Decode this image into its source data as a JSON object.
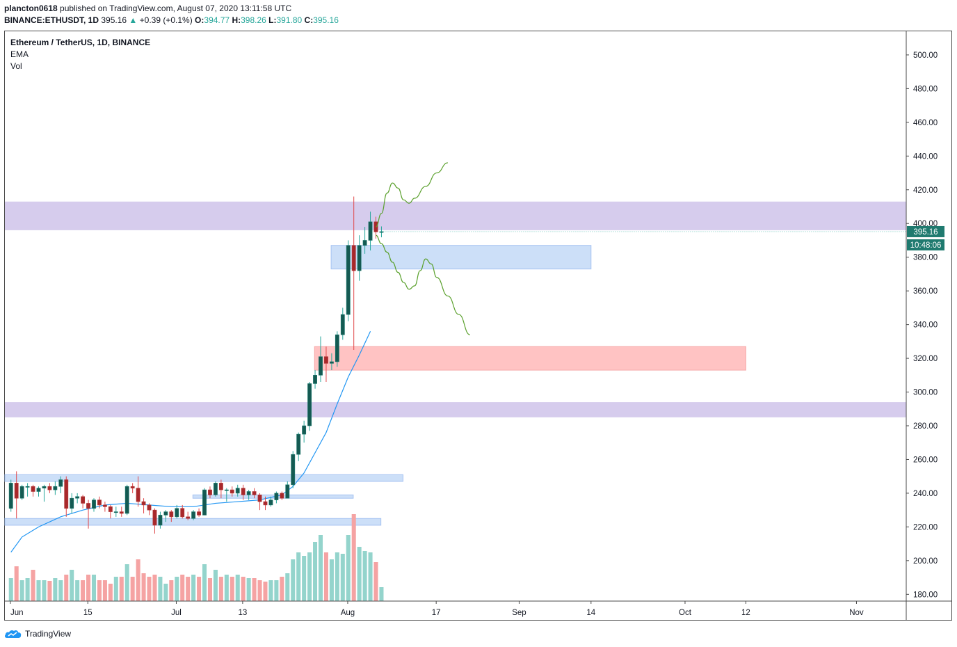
{
  "header": {
    "author": "plancton0618",
    "published_text": " published on TradingView.com, August 07, 2020 13:11:58 UTC",
    "symbol": "BINANCE:ETHUSDT, 1D",
    "last": "395.16",
    "change_arrow": "▲",
    "change": "+0.39 (+0.1%)",
    "o_label": "O:",
    "o_val": "394.77",
    "h_label": "H:",
    "h_val": "398.26",
    "l_label": "L:",
    "l_val": "391.80",
    "c_label": "C:",
    "c_val": "395.16"
  },
  "legend": {
    "title": "Ethereum / TetherUS, 1D, BINANCE",
    "ema": "EMA",
    "vol": "Vol"
  },
  "price_label": "395.16",
  "countdown_label": "10:48:06",
  "footer": {
    "brand": "TradingView"
  },
  "colors": {
    "up": "#26a69a",
    "down": "#ef5350",
    "vol_up": "#94d4cc",
    "vol_down": "#f5a3a3",
    "ema": "#2196f3",
    "projection": "#5aa02c",
    "purple_zone": "#d2c7eb",
    "blue_zone": "#c7dcf8",
    "red_zone": "#ffbdbd"
  },
  "chart_data": {
    "type": "candlestick",
    "title": "Ethereum / TetherUS, 1D, BINANCE",
    "ylim": [
      176,
      514
    ],
    "y_ticks": [
      "500.00",
      "480.00",
      "460.00",
      "440.00",
      "420.00",
      "400.00",
      "380.00",
      "360.00",
      "340.00",
      "320.00",
      "300.00",
      "280.00",
      "260.00",
      "240.00",
      "220.00",
      "200.00",
      "180.00"
    ],
    "x_ticks": [
      "Jun",
      "15",
      "Jul",
      "13",
      "Aug",
      "17",
      "Sep",
      "14",
      "Oct",
      "12",
      "Nov"
    ],
    "x_tick_dates": [
      "2020-06-01",
      "2020-06-15",
      "2020-07-01",
      "2020-07-13",
      "2020-08-01",
      "2020-08-17",
      "2020-09-01",
      "2020-09-14",
      "2020-10-01",
      "2020-10-12",
      "2020-11-01"
    ],
    "x_range": [
      "2020-05-31",
      "2020-11-10"
    ],
    "last_price": 395.16,
    "candles": [
      {
        "d": "2020-06-01",
        "o": 231,
        "h": 248,
        "l": 229,
        "c": 246
      },
      {
        "d": "2020-06-02",
        "o": 246,
        "h": 253,
        "l": 225,
        "c": 237
      },
      {
        "d": "2020-06-03",
        "o": 237,
        "h": 245,
        "l": 236,
        "c": 244
      },
      {
        "d": "2020-06-04",
        "o": 244,
        "h": 246,
        "l": 238,
        "c": 244
      },
      {
        "d": "2020-06-05",
        "o": 244,
        "h": 245,
        "l": 238,
        "c": 241
      },
      {
        "d": "2020-06-06",
        "o": 241,
        "h": 244,
        "l": 238,
        "c": 243
      },
      {
        "d": "2020-06-07",
        "o": 243,
        "h": 245,
        "l": 235,
        "c": 244
      },
      {
        "d": "2020-06-08",
        "o": 244,
        "h": 246,
        "l": 240,
        "c": 242
      },
      {
        "d": "2020-06-09",
        "o": 242,
        "h": 247,
        "l": 239,
        "c": 244
      },
      {
        "d": "2020-06-10",
        "o": 244,
        "h": 250,
        "l": 240,
        "c": 248
      },
      {
        "d": "2020-06-11",
        "o": 248,
        "h": 250,
        "l": 226,
        "c": 231
      },
      {
        "d": "2020-06-12",
        "o": 231,
        "h": 240,
        "l": 228,
        "c": 237
      },
      {
        "d": "2020-06-13",
        "o": 237,
        "h": 240,
        "l": 234,
        "c": 238
      },
      {
        "d": "2020-06-14",
        "o": 238,
        "h": 239,
        "l": 231,
        "c": 234
      },
      {
        "d": "2020-06-15",
        "o": 234,
        "h": 236,
        "l": 219,
        "c": 231
      },
      {
        "d": "2020-06-16",
        "o": 231,
        "h": 237,
        "l": 229,
        "c": 236
      },
      {
        "d": "2020-06-17",
        "o": 236,
        "h": 238,
        "l": 231,
        "c": 233
      },
      {
        "d": "2020-06-18",
        "o": 233,
        "h": 235,
        "l": 229,
        "c": 232
      },
      {
        "d": "2020-06-19",
        "o": 232,
        "h": 233,
        "l": 225,
        "c": 229
      },
      {
        "d": "2020-06-20",
        "o": 229,
        "h": 232,
        "l": 226,
        "c": 229
      },
      {
        "d": "2020-06-21",
        "o": 229,
        "h": 232,
        "l": 226,
        "c": 228
      },
      {
        "d": "2020-06-22",
        "o": 228,
        "h": 245,
        "l": 227,
        "c": 244
      },
      {
        "d": "2020-06-23",
        "o": 244,
        "h": 246,
        "l": 240,
        "c": 243
      },
      {
        "d": "2020-06-24",
        "o": 243,
        "h": 250,
        "l": 232,
        "c": 235
      },
      {
        "d": "2020-06-25",
        "o": 235,
        "h": 237,
        "l": 228,
        "c": 233
      },
      {
        "d": "2020-06-26",
        "o": 233,
        "h": 234,
        "l": 227,
        "c": 230
      },
      {
        "d": "2020-06-27",
        "o": 230,
        "h": 231,
        "l": 216,
        "c": 221
      },
      {
        "d": "2020-06-28",
        "o": 221,
        "h": 229,
        "l": 219,
        "c": 227
      },
      {
        "d": "2020-06-29",
        "o": 227,
        "h": 230,
        "l": 223,
        "c": 229
      },
      {
        "d": "2020-06-30",
        "o": 229,
        "h": 230,
        "l": 223,
        "c": 226
      },
      {
        "d": "2020-07-01",
        "o": 226,
        "h": 233,
        "l": 225,
        "c": 231
      },
      {
        "d": "2020-07-02",
        "o": 231,
        "h": 233,
        "l": 225,
        "c": 226
      },
      {
        "d": "2020-07-03",
        "o": 226,
        "h": 229,
        "l": 224,
        "c": 225
      },
      {
        "d": "2020-07-04",
        "o": 225,
        "h": 230,
        "l": 224,
        "c": 229
      },
      {
        "d": "2020-07-05",
        "o": 229,
        "h": 231,
        "l": 226,
        "c": 227
      },
      {
        "d": "2020-07-06",
        "o": 227,
        "h": 243,
        "l": 227,
        "c": 242
      },
      {
        "d": "2020-07-07",
        "o": 242,
        "h": 244,
        "l": 237,
        "c": 239
      },
      {
        "d": "2020-07-08",
        "o": 239,
        "h": 247,
        "l": 238,
        "c": 246
      },
      {
        "d": "2020-07-09",
        "o": 246,
        "h": 248,
        "l": 237,
        "c": 242
      },
      {
        "d": "2020-07-10",
        "o": 242,
        "h": 243,
        "l": 235,
        "c": 242
      },
      {
        "d": "2020-07-11",
        "o": 242,
        "h": 244,
        "l": 238,
        "c": 240
      },
      {
        "d": "2020-07-12",
        "o": 240,
        "h": 245,
        "l": 238,
        "c": 243
      },
      {
        "d": "2020-07-13",
        "o": 243,
        "h": 245,
        "l": 236,
        "c": 239
      },
      {
        "d": "2020-07-14",
        "o": 239,
        "h": 242,
        "l": 236,
        "c": 241
      },
      {
        "d": "2020-07-15",
        "o": 241,
        "h": 243,
        "l": 237,
        "c": 239
      },
      {
        "d": "2020-07-16",
        "o": 239,
        "h": 240,
        "l": 230,
        "c": 235
      },
      {
        "d": "2020-07-17",
        "o": 235,
        "h": 238,
        "l": 230,
        "c": 233
      },
      {
        "d": "2020-07-18",
        "o": 233,
        "h": 238,
        "l": 232,
        "c": 236
      },
      {
        "d": "2020-07-19",
        "o": 236,
        "h": 241,
        "l": 234,
        "c": 240
      },
      {
        "d": "2020-07-20",
        "o": 240,
        "h": 241,
        "l": 236,
        "c": 237
      },
      {
        "d": "2020-07-21",
        "o": 237,
        "h": 247,
        "l": 237,
        "c": 245
      },
      {
        "d": "2020-07-22",
        "o": 245,
        "h": 265,
        "l": 243,
        "c": 263
      },
      {
        "d": "2020-07-23",
        "o": 263,
        "h": 276,
        "l": 259,
        "c": 275
      },
      {
        "d": "2020-07-24",
        "o": 275,
        "h": 283,
        "l": 270,
        "c": 280
      },
      {
        "d": "2020-07-25",
        "o": 280,
        "h": 306,
        "l": 277,
        "c": 305
      },
      {
        "d": "2020-07-26",
        "o": 305,
        "h": 313,
        "l": 302,
        "c": 310
      },
      {
        "d": "2020-07-27",
        "o": 310,
        "h": 333,
        "l": 306,
        "c": 321
      },
      {
        "d": "2020-07-28",
        "o": 321,
        "h": 327,
        "l": 306,
        "c": 317
      },
      {
        "d": "2020-07-29",
        "o": 317,
        "h": 323,
        "l": 313,
        "c": 318
      },
      {
        "d": "2020-07-30",
        "o": 318,
        "h": 336,
        "l": 315,
        "c": 334
      },
      {
        "d": "2020-07-31",
        "o": 334,
        "h": 350,
        "l": 331,
        "c": 346
      },
      {
        "d": "2020-08-01",
        "o": 346,
        "h": 390,
        "l": 342,
        "c": 387
      },
      {
        "d": "2020-08-02",
        "o": 387,
        "h": 416,
        "l": 325,
        "c": 372
      },
      {
        "d": "2020-08-03",
        "o": 372,
        "h": 393,
        "l": 366,
        "c": 387
      },
      {
        "d": "2020-08-04",
        "o": 387,
        "h": 398,
        "l": 382,
        "c": 390
      },
      {
        "d": "2020-08-05",
        "o": 390,
        "h": 407,
        "l": 384,
        "c": 401
      },
      {
        "d": "2020-08-06",
        "o": 401,
        "h": 404,
        "l": 391,
        "c": 395
      },
      {
        "d": "2020-08-07",
        "o": 394.77,
        "h": 398.26,
        "l": 391.8,
        "c": 395.16
      }
    ],
    "volume_pct": [
      33,
      50,
      30,
      33,
      45,
      30,
      30,
      29,
      33,
      30,
      38,
      45,
      30,
      30,
      38,
      38,
      30,
      30,
      25,
      35,
      35,
      53,
      35,
      60,
      40,
      35,
      38,
      35,
      25,
      30,
      35,
      38,
      35,
      38,
      35,
      53,
      33,
      45,
      35,
      38,
      35,
      38,
      35,
      33,
      33,
      30,
      28,
      30,
      30,
      35,
      40,
      60,
      70,
      65,
      70,
      85,
      95,
      70,
      60,
      70,
      68,
      95,
      125,
      78,
      72,
      70,
      56,
      20
    ],
    "ema": [
      [
        1,
        205
      ],
      [
        3,
        214
      ],
      [
        6,
        220
      ],
      [
        10,
        226
      ],
      [
        14,
        230
      ],
      [
        18,
        233
      ],
      [
        22,
        234
      ],
      [
        26,
        233
      ],
      [
        30,
        232
      ],
      [
        34,
        232
      ],
      [
        38,
        234
      ],
      [
        42,
        235
      ],
      [
        46,
        236
      ],
      [
        50,
        239
      ],
      [
        52,
        244
      ],
      [
        54,
        252
      ],
      [
        56,
        264
      ],
      [
        58,
        276
      ],
      [
        60,
        293
      ],
      [
        62,
        309
      ],
      [
        64,
        322
      ],
      [
        66,
        336
      ]
    ],
    "zones": [
      {
        "kind": "resistance",
        "from_date": "2020-05-31",
        "to_date": "2020-11-10",
        "low": 396,
        "high": 413
      },
      {
        "kind": "support",
        "from_date": "2020-05-31",
        "to_date": "2020-11-10",
        "low": 285,
        "high": 294
      },
      {
        "kind": "demand",
        "from_date": "2020-07-29",
        "to_date": "2020-09-14",
        "low": 373,
        "high": 387
      },
      {
        "kind": "supply",
        "from_date": "2020-07-26",
        "to_date": "2020-10-12",
        "low": 313,
        "high": 327
      },
      {
        "kind": "range",
        "from_date": "2020-05-31",
        "to_date": "2020-08-11",
        "low": 247,
        "high": 251
      },
      {
        "kind": "range",
        "from_date": "2020-07-04",
        "to_date": "2020-08-02",
        "low": 237,
        "high": 239
      },
      {
        "kind": "range",
        "from_date": "2020-05-31",
        "to_date": "2020-08-07",
        "low": 221,
        "high": 225
      }
    ],
    "projections": [
      {
        "name": "bullish",
        "points": [
          [
            67,
            398
          ],
          [
            68,
            406
          ],
          [
            69,
            418
          ],
          [
            70,
            424
          ],
          [
            71,
            421
          ],
          [
            72,
            414
          ],
          [
            73,
            412
          ],
          [
            74,
            415
          ],
          [
            76,
            422
          ],
          [
            78,
            430
          ],
          [
            80,
            436
          ]
        ]
      },
      {
        "name": "bearish",
        "points": [
          [
            67,
            393
          ],
          [
            68,
            388
          ],
          [
            69,
            383
          ],
          [
            70,
            377
          ],
          [
            71,
            371
          ],
          [
            72,
            365
          ],
          [
            73,
            361
          ],
          [
            74,
            363
          ],
          [
            75,
            372
          ],
          [
            76,
            379
          ],
          [
            77,
            376
          ],
          [
            78,
            368
          ],
          [
            80,
            357
          ],
          [
            82,
            346
          ],
          [
            84,
            334
          ]
        ]
      }
    ]
  }
}
